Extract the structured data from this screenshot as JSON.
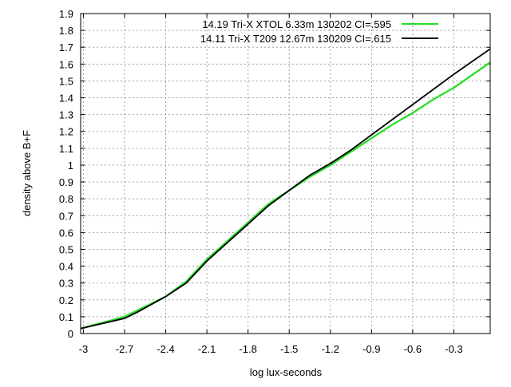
{
  "chart_data": {
    "type": "line",
    "title": "",
    "xlabel": "log lux-seconds",
    "ylabel": "density above B+F",
    "xlim": [
      -3.02,
      -0.035
    ],
    "ylim": [
      0,
      1.9
    ],
    "xticks": [
      -3,
      -2.7,
      -2.4,
      -2.1,
      -1.8,
      -1.5,
      -1.2,
      -0.9,
      -0.6,
      -0.3
    ],
    "xtick_labels": [
      "-3",
      "-2.7",
      "-2.4",
      "-2.1",
      "-1.8",
      "-1.5",
      "-1.2",
      "-0.9",
      "-0.6",
      "-0.3"
    ],
    "yticks": [
      0,
      0.1,
      0.2,
      0.3,
      0.4,
      0.5,
      0.6,
      0.7,
      0.8,
      0.9,
      1,
      1.1,
      1.2,
      1.3,
      1.4,
      1.5,
      1.6,
      1.7,
      1.8,
      1.9
    ],
    "ytick_labels": [
      "0",
      "0.1",
      "0.2",
      "0.3",
      "0.4",
      "0.5",
      "0.6",
      "0.7",
      "0.8",
      "0.9",
      "1",
      "1.1",
      "1.2",
      "1.3",
      "1.4",
      "1.5",
      "1.6",
      "1.7",
      "1.8",
      "1.9"
    ],
    "grid": true,
    "legend_position": "top-right",
    "x": [
      -3.02,
      -2.7,
      -2.6,
      -2.4,
      -2.25,
      -2.1,
      -1.95,
      -1.8,
      -1.65,
      -1.5,
      -1.35,
      -1.2,
      -1.05,
      -0.9,
      -0.75,
      -0.6,
      -0.45,
      -0.3,
      -0.035
    ],
    "series": [
      {
        "name": "14.19 Tri-X XTOL 6.33m 130202 CI=.595",
        "color": "#22dd22",
        "values": [
          0.03,
          0.1,
          0.14,
          0.22,
          0.31,
          0.44,
          0.55,
          0.66,
          0.77,
          0.85,
          0.93,
          1.0,
          1.08,
          1.16,
          1.24,
          1.31,
          1.39,
          1.46,
          1.61
        ]
      },
      {
        "name": "14.11 Tri-X T209 12.67m 130209 CI=.615",
        "color": "#000000",
        "values": [
          0.03,
          0.09,
          0.13,
          0.22,
          0.3,
          0.43,
          0.54,
          0.65,
          0.76,
          0.85,
          0.94,
          1.01,
          1.09,
          1.18,
          1.27,
          1.36,
          1.45,
          1.54,
          1.69
        ]
      }
    ]
  }
}
